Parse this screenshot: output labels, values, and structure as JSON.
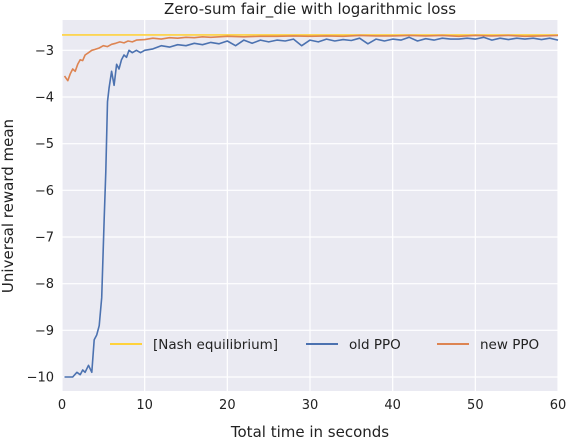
{
  "chart_data": {
    "type": "line",
    "title": "Zero-sum fair_die with logarithmic loss",
    "xlabel": "Total time in seconds",
    "ylabel": "Universal reward mean",
    "xlim": [
      0,
      60
    ],
    "ylim": [
      -10.3,
      -2.35
    ],
    "x_ticks": [
      0,
      10,
      20,
      30,
      40,
      50,
      60
    ],
    "y_ticks": [
      -10,
      -9,
      -8,
      -7,
      -6,
      -5,
      -4,
      -3
    ],
    "x_tick_labels": [
      "0",
      "10",
      "20",
      "30",
      "40",
      "50",
      "60"
    ],
    "y_tick_labels": [
      "−10",
      "−9",
      "−8",
      "−7",
      "−6",
      "−5",
      "−4",
      "−3"
    ],
    "grid": true,
    "legend_position": "lower-center",
    "background_color": "#eaeaf2",
    "series": [
      {
        "name": "[Nash equilibrium]",
        "color": "#ffd23c",
        "x": [
          0,
          60
        ],
        "y": [
          -2.67,
          -2.67
        ]
      },
      {
        "name": "old PPO",
        "color": "#4c72b0",
        "x": [
          0.3,
          0.8,
          1.3,
          1.8,
          2.2,
          2.5,
          2.8,
          3.2,
          3.6,
          3.9,
          4.2,
          4.5,
          4.8,
          5.1,
          5.3,
          5.5,
          5.7,
          6.0,
          6.3,
          6.6,
          6.9,
          7.2,
          7.5,
          7.8,
          8.1,
          8.5,
          9.0,
          9.5,
          10.0,
          11.0,
          12.0,
          13.0,
          14.0,
          15.0,
          16.0,
          17.0,
          18.0,
          19.0,
          20.0,
          21.0,
          22.0,
          23.0,
          24.0,
          25.0,
          26.0,
          27.0,
          28.0,
          29.0,
          30.0,
          31.0,
          32.0,
          33.0,
          34.0,
          35.0,
          36.0,
          37.0,
          38.0,
          39.0,
          40.0,
          41.0,
          42.0,
          43.0,
          44.0,
          45.0,
          46.0,
          47.0,
          48.0,
          49.0,
          50.0,
          51.0,
          52.0,
          53.0,
          54.0,
          55.0,
          56.0,
          57.0,
          58.0,
          59.0,
          60.0
        ],
        "y": [
          -10.0,
          -10.0,
          -10.0,
          -9.9,
          -9.95,
          -9.85,
          -9.9,
          -9.75,
          -9.9,
          -9.2,
          -9.1,
          -8.9,
          -8.3,
          -6.6,
          -5.6,
          -4.1,
          -3.8,
          -3.45,
          -3.75,
          -3.3,
          -3.4,
          -3.2,
          -3.1,
          -3.15,
          -3.0,
          -3.05,
          -3.0,
          -3.05,
          -3.0,
          -2.97,
          -2.9,
          -2.93,
          -2.88,
          -2.9,
          -2.85,
          -2.88,
          -2.83,
          -2.86,
          -2.8,
          -2.9,
          -2.78,
          -2.85,
          -2.78,
          -2.82,
          -2.78,
          -2.8,
          -2.76,
          -2.9,
          -2.78,
          -2.82,
          -2.76,
          -2.8,
          -2.77,
          -2.79,
          -2.74,
          -2.86,
          -2.76,
          -2.8,
          -2.76,
          -2.78,
          -2.72,
          -2.8,
          -2.75,
          -2.78,
          -2.74,
          -2.76,
          -2.76,
          -2.74,
          -2.76,
          -2.72,
          -2.78,
          -2.74,
          -2.77,
          -2.74,
          -2.76,
          -2.74,
          -2.77,
          -2.74,
          -2.78
        ]
      },
      {
        "name": "new PPO",
        "color": "#dd8452",
        "x": [
          0.3,
          0.7,
          1.0,
          1.3,
          1.6,
          1.9,
          2.2,
          2.5,
          2.8,
          3.2,
          3.6,
          4.0,
          4.5,
          5.0,
          5.5,
          6.0,
          6.5,
          7.0,
          7.5,
          8.0,
          8.5,
          9.0,
          10.0,
          11.0,
          12.0,
          13.0,
          14.0,
          15.0,
          16.0,
          17.0,
          18.0,
          19.0,
          20.0,
          22.0,
          24.0,
          26.0,
          28.0,
          30.0,
          32.0,
          34.0,
          36.0,
          38.0,
          40.0,
          42.0,
          44.0,
          46.0,
          48.0,
          50.0,
          52.0,
          54.0,
          56.0,
          58.0,
          60.0
        ],
        "y": [
          -3.55,
          -3.65,
          -3.5,
          -3.4,
          -3.45,
          -3.3,
          -3.2,
          -3.22,
          -3.1,
          -3.05,
          -3.0,
          -2.98,
          -2.95,
          -2.9,
          -2.92,
          -2.87,
          -2.85,
          -2.82,
          -2.84,
          -2.8,
          -2.82,
          -2.78,
          -2.77,
          -2.74,
          -2.76,
          -2.73,
          -2.74,
          -2.72,
          -2.73,
          -2.71,
          -2.72,
          -2.71,
          -2.7,
          -2.71,
          -2.7,
          -2.7,
          -2.69,
          -2.7,
          -2.69,
          -2.7,
          -2.68,
          -2.69,
          -2.69,
          -2.68,
          -2.69,
          -2.68,
          -2.7,
          -2.68,
          -2.69,
          -2.68,
          -2.7,
          -2.69,
          -2.68
        ]
      }
    ]
  }
}
